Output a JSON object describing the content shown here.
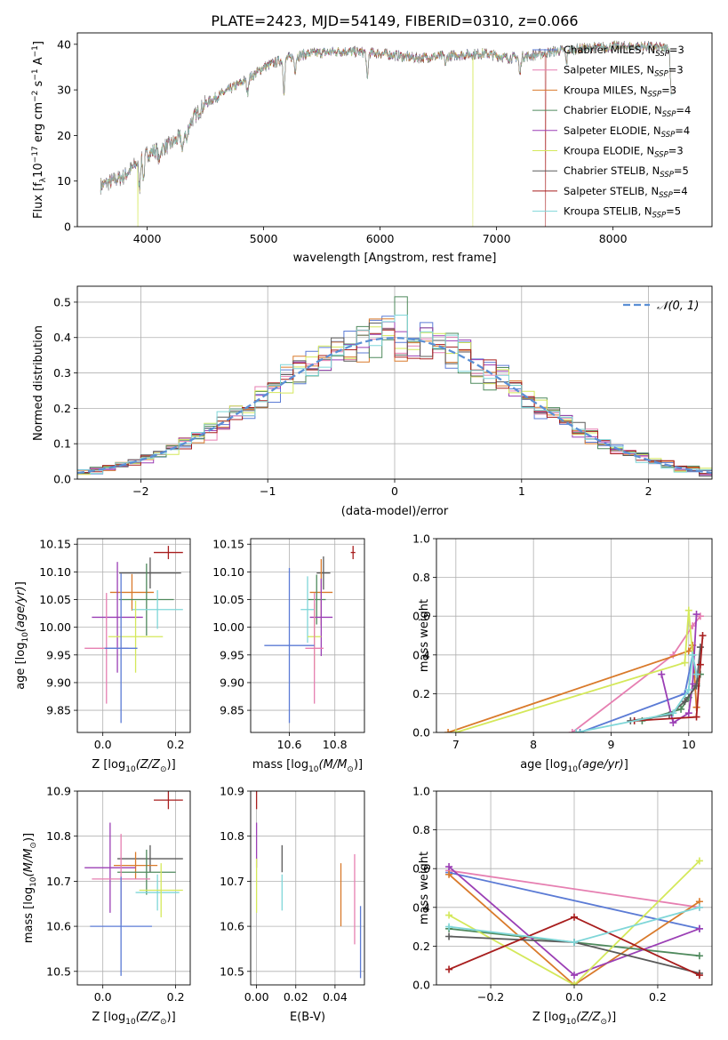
{
  "title": "PLATE=2423, MJD=54149, FIBERID=0310, z=0.066",
  "colors": {
    "chabrier_miles": "#5b7bd5",
    "salpeter_miles": "#e67fb1",
    "kroupa_miles": "#d97a2b",
    "chabrier_elodie": "#4f8a5d",
    "salpeter_elodie": "#9b3fb5",
    "kroupa_elodie": "#d4e85a",
    "chabrier_stelib": "#5a5a5a",
    "salpeter_stelib": "#a81e1e",
    "kroupa_stelib": "#7fd6d8",
    "normal_curve": "#5b8fd5"
  },
  "legend_spectrum": [
    {
      "key": "chabrier_miles",
      "label": "Chabrier MILES, N",
      "sub": "SSP",
      "tail": "=3"
    },
    {
      "key": "salpeter_miles",
      "label": "Salpeter MILES, N",
      "sub": "SSP",
      "tail": "=3"
    },
    {
      "key": "kroupa_miles",
      "label": "Kroupa MILES, N",
      "sub": "SSP",
      "tail": "=3"
    },
    {
      "key": "chabrier_elodie",
      "label": "Chabrier ELODIE, N",
      "sub": "SSP",
      "tail": "=4"
    },
    {
      "key": "salpeter_elodie",
      "label": "Salpeter ELODIE, N",
      "sub": "SSP",
      "tail": "=4"
    },
    {
      "key": "kroupa_elodie",
      "label": "Kroupa ELODIE, N",
      "sub": "SSP",
      "tail": "=3"
    },
    {
      "key": "chabrier_stelib",
      "label": "Chabrier STELIB, N",
      "sub": "SSP",
      "tail": "=5"
    },
    {
      "key": "salpeter_stelib",
      "label": "Salpeter STELIB, N",
      "sub": "SSP",
      "tail": "=4"
    },
    {
      "key": "kroupa_stelib",
      "label": "Kroupa STELIB, N",
      "sub": "SSP",
      "tail": "=5"
    }
  ],
  "chart_data": [
    {
      "id": "spectrum",
      "type": "line",
      "xlabel": "wavelength [Angstrom, rest frame]",
      "ylabel": "Flux [fλ10⁻¹⁷ erg cm⁻² s⁻¹ A⁻¹]",
      "xlim": [
        3400,
        8850
      ],
      "ylim": [
        0,
        42.5
      ],
      "xticks": [
        4000,
        5000,
        6000,
        7000,
        8000
      ],
      "yticks": [
        0,
        10,
        20,
        30,
        40
      ],
      "continuum": {
        "x": [
          3600,
          3800,
          3950,
          4000,
          4200,
          4300,
          4400,
          4500,
          4700,
          4900,
          5000,
          5200,
          5400,
          5700,
          6000,
          6300,
          6600,
          6900,
          7100,
          7300,
          7500,
          7700,
          8000,
          8300,
          8500
        ],
        "y": [
          9,
          11,
          15,
          16,
          18,
          20,
          24,
          27,
          30,
          33,
          35,
          37,
          38,
          38.5,
          38,
          37,
          37.5,
          38,
          37,
          37.5,
          38.5,
          39,
          39.5,
          39.5,
          39
        ]
      },
      "absorption_lines": [
        {
          "x": 3934,
          "depth": 6
        },
        {
          "x": 3969,
          "depth": 5
        },
        {
          "x": 4102,
          "depth": 3
        },
        {
          "x": 4304,
          "depth": 4
        },
        {
          "x": 4340,
          "depth": 3
        },
        {
          "x": 4861,
          "depth": 3
        },
        {
          "x": 5175,
          "depth": 7
        },
        {
          "x": 5270,
          "depth": 3
        },
        {
          "x": 5890,
          "depth": 6
        },
        {
          "x": 6563,
          "depth": 2
        },
        {
          "x": 7200,
          "depth": 4
        },
        {
          "x": 7600,
          "depth": 3
        },
        {
          "x": 8500,
          "depth": 10
        },
        {
          "x": 8545,
          "depth": 8
        }
      ],
      "drops": [
        {
          "series": "kroupa_elodie",
          "x": 3920
        },
        {
          "series": "kroupa_elodie",
          "x": 6795
        },
        {
          "series": "salpeter_stelib",
          "x": 7420
        }
      ]
    },
    {
      "id": "residual_histogram",
      "type": "histogram",
      "xlabel": "(data-model)/error",
      "ylabel": "Normed distribution",
      "xlim": [
        -2.5,
        2.5
      ],
      "ylim": [
        0,
        0.545
      ],
      "xticks": [
        -2,
        -1,
        0,
        1,
        2
      ],
      "yticks": [
        0.0,
        0.1,
        0.2,
        0.3,
        0.4,
        0.5
      ],
      "legend": "𝒩(0, 1)",
      "bin_width": 0.1,
      "bin_start": -2.5,
      "series_order": [
        "chabrier_miles",
        "salpeter_miles",
        "kroupa_miles",
        "chabrier_elodie",
        "salpeter_elodie",
        "kroupa_elodie",
        "chabrier_stelib",
        "salpeter_stelib",
        "kroupa_stelib"
      ]
    },
    {
      "id": "age_vs_Z",
      "type": "errorbar",
      "xlabel": "Z [log₁₀(Z/Z⊙)]",
      "ylabel": "age  [log₁₀(age/yr)]",
      "xlim": [
        -0.07,
        0.24
      ],
      "ylim": [
        9.81,
        10.16
      ],
      "xticks": [
        0.0,
        0.2
      ],
      "yticks": [
        9.85,
        9.9,
        9.95,
        10.0,
        10.05,
        10.1,
        10.15
      ],
      "points": [
        {
          "s": "salpeter_stelib",
          "x": 0.18,
          "y": 10.135,
          "xerr": 0.04,
          "yerr": 0.012
        },
        {
          "s": "chabrier_stelib",
          "x": 0.13,
          "y": 10.098,
          "xerr": 0.085,
          "yerr": 0.028
        },
        {
          "s": "kroupa_miles",
          "x": 0.08,
          "y": 10.063,
          "xerr": 0.06,
          "yerr": 0.033
        },
        {
          "s": "chabrier_elodie",
          "x": 0.12,
          "y": 10.05,
          "xerr": 0.075,
          "yerr": 0.065
        },
        {
          "s": "kroupa_stelib",
          "x": 0.15,
          "y": 10.032,
          "xerr": 0.07,
          "yerr": 0.035
        },
        {
          "s": "salpeter_elodie",
          "x": 0.04,
          "y": 10.018,
          "xerr": 0.07,
          "yerr": 0.1
        },
        {
          "s": "kroupa_elodie",
          "x": 0.09,
          "y": 9.983,
          "xerr": 0.075,
          "yerr": 0.065
        },
        {
          "s": "salpeter_miles",
          "x": 0.01,
          "y": 9.962,
          "xerr": 0.06,
          "yerr": 0.1
        },
        {
          "s": "chabrier_miles",
          "x": 0.05,
          "y": 9.962,
          "xerr": 0.045,
          "yerr": 0.135
        }
      ]
    },
    {
      "id": "age_vs_mass",
      "type": "errorbar",
      "xlabel": "mass [log₁₀(M/M⊙)]",
      "xlim": [
        10.43,
        10.93
      ],
      "ylim": [
        9.81,
        10.16
      ],
      "xticks": [
        10.6,
        10.8
      ],
      "yticks": [
        9.85,
        9.9,
        9.95,
        10.0,
        10.05,
        10.1,
        10.15
      ],
      "points": [
        {
          "s": "salpeter_stelib",
          "x": 10.88,
          "y": 10.135,
          "xerr": 0.01,
          "yerr": 0.012
        },
        {
          "s": "chabrier_stelib",
          "x": 10.75,
          "y": 10.098,
          "xerr": 0.03,
          "yerr": 0.03
        },
        {
          "s": "kroupa_miles",
          "x": 10.74,
          "y": 10.063,
          "xerr": 0.05,
          "yerr": 0.06
        },
        {
          "s": "chabrier_elodie",
          "x": 10.72,
          "y": 10.05,
          "xerr": 0.04,
          "yerr": 0.045
        },
        {
          "s": "kroupa_stelib",
          "x": 10.68,
          "y": 10.032,
          "xerr": 0.03,
          "yerr": 0.06
        },
        {
          "s": "salpeter_elodie",
          "x": 10.74,
          "y": 10.018,
          "xerr": 0.05,
          "yerr": 0.07
        },
        {
          "s": "kroupa_elodie",
          "x": 10.71,
          "y": 9.983,
          "xerr": 0.03,
          "yerr": 0.06
        },
        {
          "s": "salpeter_miles",
          "x": 10.71,
          "y": 9.962,
          "xerr": 0.04,
          "yerr": 0.1
        },
        {
          "s": "chabrier_miles",
          "x": 10.6,
          "y": 9.967,
          "xerr": 0.11,
          "yerr": 0.14
        }
      ]
    },
    {
      "id": "mass_weight_vs_age",
      "type": "line",
      "xlabel": "age  [log₁₀(age/yr)]",
      "ylabel": "mass weight",
      "xlim": [
        6.75,
        10.3
      ],
      "ylim": [
        0,
        1.0
      ],
      "xticks": [
        7,
        8,
        9,
        10
      ],
      "yticks": [
        0.0,
        0.2,
        0.4,
        0.6,
        0.8,
        1.0
      ],
      "series": [
        {
          "s": "chabrier_miles",
          "x": [
            8.6,
            9.95,
            10.05,
            10.1
          ],
          "y": [
            0.0,
            0.2,
            0.4,
            0.3
          ]
        },
        {
          "s": "salpeter_miles",
          "x": [
            8.5,
            9.8,
            10.05,
            10.15
          ],
          "y": [
            0.0,
            0.4,
            0.55,
            0.6
          ]
        },
        {
          "s": "kroupa_miles",
          "x": [
            6.9,
            10.0,
            10.05,
            10.1
          ],
          "y": [
            0.0,
            0.42,
            0.45,
            0.13
          ]
        },
        {
          "s": "chabrier_elodie",
          "x": [
            9.4,
            9.9,
            10.0,
            10.1,
            10.15
          ],
          "y": [
            0.06,
            0.12,
            0.18,
            0.25,
            0.3
          ]
        },
        {
          "s": "salpeter_elodie",
          "x": [
            9.65,
            9.8,
            10.0,
            10.05,
            10.1
          ],
          "y": [
            0.3,
            0.05,
            0.1,
            0.25,
            0.61
          ]
        },
        {
          "s": "kroupa_elodie",
          "x": [
            7.0,
            9.95,
            10.0,
            10.05
          ],
          "y": [
            0.0,
            0.36,
            0.63,
            0.4
          ]
        },
        {
          "s": "chabrier_stelib",
          "x": [
            9.25,
            9.75,
            9.95,
            10.1,
            10.15
          ],
          "y": [
            0.06,
            0.09,
            0.16,
            0.24,
            0.44
          ]
        },
        {
          "s": "salpeter_stelib",
          "x": [
            9.3,
            10.1,
            10.15,
            10.18
          ],
          "y": [
            0.06,
            0.08,
            0.35,
            0.5
          ]
        },
        {
          "s": "kroupa_stelib",
          "x": [
            8.55,
            9.8,
            10.0,
            10.05,
            10.1
          ],
          "y": [
            0.0,
            0.1,
            0.22,
            0.4,
            0.3
          ]
        }
      ]
    },
    {
      "id": "mass_vs_Z",
      "type": "errorbar",
      "xlabel": "Z [log₁₀(Z/Z⊙)]",
      "ylabel": "mass [log₁₀(M/M⊙)]",
      "xlim": [
        -0.07,
        0.24
      ],
      "ylim": [
        10.47,
        10.9
      ],
      "xticks": [
        0.0,
        0.2
      ],
      "yticks": [
        10.5,
        10.6,
        10.7,
        10.8,
        10.9
      ],
      "points": [
        {
          "s": "salpeter_stelib",
          "x": 0.18,
          "y": 10.88,
          "xerr": 0.04,
          "yerr": 0.02
        },
        {
          "s": "chabrier_stelib",
          "x": 0.13,
          "y": 10.75,
          "xerr": 0.09,
          "yerr": 0.03
        },
        {
          "s": "kroupa_miles",
          "x": 0.09,
          "y": 10.735,
          "xerr": 0.06,
          "yerr": 0.03
        },
        {
          "s": "salpeter_elodie",
          "x": 0.02,
          "y": 10.73,
          "xerr": 0.07,
          "yerr": 0.1
        },
        {
          "s": "chabrier_elodie",
          "x": 0.12,
          "y": 10.72,
          "xerr": 0.08,
          "yerr": 0.05
        },
        {
          "s": "salpeter_miles",
          "x": 0.05,
          "y": 10.705,
          "xerr": 0.08,
          "yerr": 0.1
        },
        {
          "s": "kroupa_stelib",
          "x": 0.15,
          "y": 10.675,
          "xerr": 0.06,
          "yerr": 0.04
        },
        {
          "s": "kroupa_elodie",
          "x": 0.16,
          "y": 10.68,
          "xerr": 0.06,
          "yerr": 0.06
        },
        {
          "s": "chabrier_miles",
          "x": 0.05,
          "y": 10.6,
          "xerr": 0.085,
          "yerr": 0.11
        }
      ]
    },
    {
      "id": "mass_vs_EBV",
      "type": "errorbar",
      "xlabel": "E(B-V)",
      "xlim": [
        -0.003,
        0.055
      ],
      "ylim": [
        10.47,
        10.9
      ],
      "xticks": [
        0.0,
        0.02,
        0.04
      ],
      "yticks": [
        10.5,
        10.6,
        10.7,
        10.8,
        10.9
      ],
      "points": [
        {
          "s": "salpeter_stelib",
          "x": 0.0,
          "y": 10.88,
          "xerr": 0,
          "yerr": 0.02
        },
        {
          "s": "salpeter_elodie",
          "x": 0.0,
          "y": 10.78,
          "xerr": 0,
          "yerr": 0.05
        },
        {
          "s": "kroupa_elodie",
          "x": 0.0,
          "y": 10.69,
          "xerr": 0,
          "yerr": 0.06
        },
        {
          "s": "chabrier_stelib",
          "x": 0.013,
          "y": 10.75,
          "xerr": 0,
          "yerr": 0.03
        },
        {
          "s": "kroupa_stelib",
          "x": 0.013,
          "y": 10.675,
          "xerr": 0,
          "yerr": 0.04
        },
        {
          "s": "kroupa_miles",
          "x": 0.043,
          "y": 10.67,
          "xerr": 0,
          "yerr": 0.07
        },
        {
          "s": "salpeter_miles",
          "x": 0.05,
          "y": 10.66,
          "xerr": 0,
          "yerr": 0.1
        },
        {
          "s": "chabrier_miles",
          "x": 0.053,
          "y": 10.565,
          "xerr": 0,
          "yerr": 0.08
        }
      ]
    },
    {
      "id": "mass_weight_vs_Z",
      "type": "line",
      "xlabel": "Z [log₁₀(Z/Z⊙)]",
      "ylabel": "mass weight",
      "xlim": [
        -0.33,
        0.33
      ],
      "ylim": [
        0,
        1.0
      ],
      "xticks": [
        -0.2,
        0.0,
        0.2
      ],
      "yticks": [
        0.0,
        0.2,
        0.4,
        0.6,
        0.8,
        1.0
      ],
      "series": [
        {
          "s": "chabrier_miles",
          "x": [
            -0.3,
            0.3
          ],
          "y": [
            0.58,
            0.29
          ]
        },
        {
          "s": "salpeter_miles",
          "x": [
            -0.3,
            0.3
          ],
          "y": [
            0.59,
            0.4
          ]
        },
        {
          "s": "kroupa_miles",
          "x": [
            -0.3,
            0.0,
            0.3
          ],
          "y": [
            0.57,
            0.0,
            0.43
          ]
        },
        {
          "s": "chabrier_elodie",
          "x": [
            -0.3,
            0.3
          ],
          "y": [
            0.29,
            0.15
          ]
        },
        {
          "s": "salpeter_elodie",
          "x": [
            -0.3,
            0.0,
            0.3
          ],
          "y": [
            0.61,
            0.05,
            0.29
          ]
        },
        {
          "s": "kroupa_elodie",
          "x": [
            -0.3,
            0.0,
            0.3
          ],
          "y": [
            0.36,
            0.0,
            0.64
          ]
        },
        {
          "s": "chabrier_stelib",
          "x": [
            -0.3,
            0.0,
            0.3
          ],
          "y": [
            0.25,
            0.22,
            0.06
          ]
        },
        {
          "s": "salpeter_stelib",
          "x": [
            -0.3,
            0.0,
            0.3
          ],
          "y": [
            0.08,
            0.35,
            0.05
          ]
        },
        {
          "s": "kroupa_stelib",
          "x": [
            -0.3,
            0.0,
            0.3
          ],
          "y": [
            0.3,
            0.22,
            0.4
          ]
        }
      ]
    }
  ]
}
